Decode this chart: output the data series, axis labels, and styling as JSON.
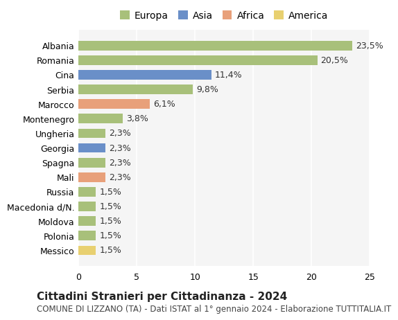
{
  "countries": [
    "Albania",
    "Romania",
    "Cina",
    "Serbia",
    "Marocco",
    "Montenegro",
    "Ungheria",
    "Georgia",
    "Spagna",
    "Mali",
    "Russia",
    "Macedonia d/N.",
    "Moldova",
    "Polonia",
    "Messico"
  ],
  "values": [
    23.5,
    20.5,
    11.4,
    9.8,
    6.1,
    3.8,
    2.3,
    2.3,
    2.3,
    2.3,
    1.5,
    1.5,
    1.5,
    1.5,
    1.5
  ],
  "labels": [
    "23,5%",
    "20,5%",
    "11,4%",
    "9,8%",
    "6,1%",
    "3,8%",
    "2,3%",
    "2,3%",
    "2,3%",
    "2,3%",
    "1,5%",
    "1,5%",
    "1,5%",
    "1,5%",
    "1,5%"
  ],
  "continent": [
    "Europa",
    "Europa",
    "Asia",
    "Europa",
    "Africa",
    "Europa",
    "Europa",
    "Asia",
    "Europa",
    "Africa",
    "Europa",
    "Europa",
    "Europa",
    "Europa",
    "America"
  ],
  "colors": {
    "Europa": "#a8c07a",
    "Asia": "#6a8fc8",
    "Africa": "#e8a07a",
    "America": "#e8d070"
  },
  "legend_order": [
    "Europa",
    "Asia",
    "Africa",
    "America"
  ],
  "title": "Cittadini Stranieri per Cittadinanza - 2024",
  "subtitle": "COMUNE DI LIZZANO (TA) - Dati ISTAT al 1° gennaio 2024 - Elaborazione TUTTITALIA.IT",
  "xlabel": "",
  "xlim": [
    0,
    25
  ],
  "xticks": [
    0,
    5,
    10,
    15,
    20,
    25
  ],
  "bg_color": "#ffffff",
  "plot_bg_color": "#f5f5f5",
  "grid_color": "#ffffff",
  "bar_height": 0.65,
  "label_fontsize": 9,
  "title_fontsize": 11,
  "subtitle_fontsize": 8.5,
  "ytick_fontsize": 9
}
